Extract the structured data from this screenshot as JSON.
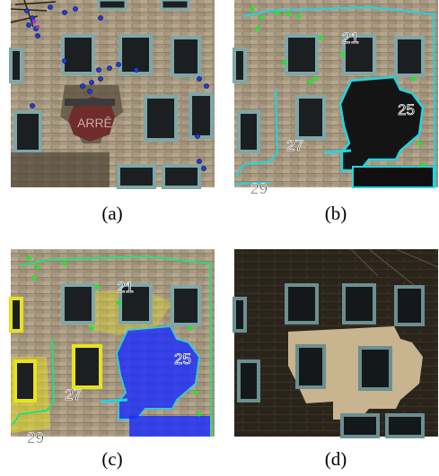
{
  "panels": [
    {
      "id": "a",
      "caption": "(a)",
      "labels": []
    },
    {
      "id": "b",
      "caption": "(b)",
      "labels": [
        "21",
        "25",
        "27",
        "29"
      ]
    },
    {
      "id": "c",
      "caption": "(c)",
      "labels": [
        "21",
        "25",
        "27",
        "29"
      ]
    },
    {
      "id": "d",
      "caption": "(d)",
      "labels": []
    }
  ],
  "colors": {
    "facade": "#a89a82",
    "shadow": "#3e3528",
    "window_frame": "#7fa7a8",
    "window_glass": "#1b1f22",
    "dots_blue": "#1c3fd8",
    "dots_green": "#1ee82a",
    "outline_cyan": "#1fd6e0",
    "region_blue": "#1a2cff",
    "region_yellow": "#e8e21c",
    "dark_bg": "#1c1812"
  }
}
